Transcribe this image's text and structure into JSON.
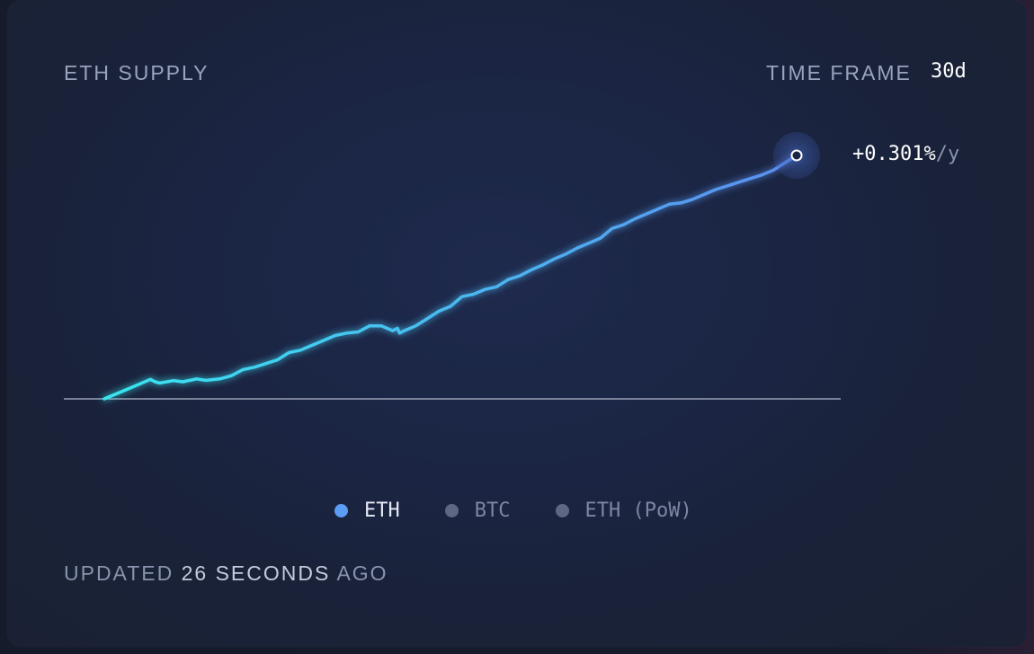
{
  "title": "ETH SUPPLY",
  "time_frame": {
    "label": "TIME FRAME",
    "value": "30d"
  },
  "rate": {
    "value": "+0.301%",
    "unit": "/y"
  },
  "legend": [
    {
      "label": "ETH",
      "color": "#5b9cf4",
      "active": true
    },
    {
      "label": "BTC",
      "color": "#5f6782",
      "active": false
    },
    {
      "label": "ETH (PoW)",
      "color": "#5f6782",
      "active": false
    }
  ],
  "footer": {
    "prefix": "UPDATED",
    "number": "26",
    "middle": "SECONDS",
    "suffix": "AGO"
  },
  "colors": {
    "line_start": "#38e6f0",
    "line_end": "#5b8ef0",
    "baseline": "#9aa1b8"
  },
  "chart_data": {
    "type": "line",
    "title": "ETH SUPPLY",
    "xlabel": "",
    "ylabel": "",
    "x_unit": "day",
    "x_range": [
      0,
      30
    ],
    "y_range": [
      0,
      1
    ],
    "grid": false,
    "legend_position": "bottom",
    "series": [
      {
        "name": "ETH",
        "x": [
          0,
          1,
          2,
          2.2,
          2.4,
          3,
          3.4,
          4,
          4.4,
          5,
          5.5,
          6,
          6.5,
          7,
          7.5,
          8,
          8.5,
          9,
          9.5,
          10,
          10.5,
          11,
          11.5,
          12,
          12.5,
          12.7,
          12.8,
          13,
          13.5,
          14,
          14.5,
          15,
          15.5,
          16,
          16.5,
          17,
          17.5,
          18,
          18.5,
          19,
          19.5,
          20,
          20.5,
          21,
          21.5,
          22,
          22.5,
          23,
          23.5,
          24,
          24.5,
          25,
          25.5,
          26,
          26.5,
          27,
          27.5,
          28,
          28.5,
          29,
          29.5,
          30
        ],
        "y": [
          0,
          0.04,
          0.08,
          0.07,
          0.065,
          0.075,
          0.07,
          0.082,
          0.076,
          0.082,
          0.095,
          0.12,
          0.13,
          0.145,
          0.16,
          0.19,
          0.2,
          0.22,
          0.24,
          0.26,
          0.27,
          0.275,
          0.3,
          0.3,
          0.28,
          0.29,
          0.27,
          0.28,
          0.3,
          0.33,
          0.36,
          0.38,
          0.42,
          0.43,
          0.45,
          0.46,
          0.49,
          0.505,
          0.53,
          0.55,
          0.575,
          0.595,
          0.62,
          0.64,
          0.66,
          0.7,
          0.715,
          0.74,
          0.76,
          0.78,
          0.8,
          0.805,
          0.82,
          0.84,
          0.86,
          0.875,
          0.89,
          0.905,
          0.92,
          0.94,
          0.97,
          1
        ]
      }
    ],
    "end_label": "+0.301%/y"
  }
}
